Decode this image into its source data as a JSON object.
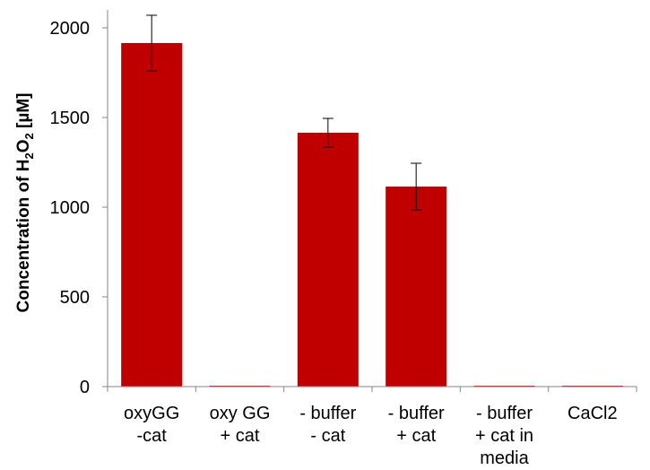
{
  "chart_data": {
    "type": "bar",
    "title": "",
    "xlabel": "",
    "ylabel": {
      "prefix": "Concentration of H",
      "sub1": "2",
      "mid": "O",
      "sub2": "2",
      "suffix": " [µM]"
    },
    "ylim": [
      0,
      2000
    ],
    "yticks": [
      0,
      500,
      1000,
      1500,
      2000
    ],
    "ytick_labels": [
      "0",
      "500",
      "1000",
      "1500",
      "2000"
    ],
    "grid": false,
    "legend": "none",
    "categories": [
      [
        "oxyGG",
        "-cat"
      ],
      [
        "oxy GG",
        "+ cat"
      ],
      [
        "- buffer",
        "- cat"
      ],
      [
        "- buffer",
        "+ cat"
      ],
      [
        "- buffer",
        "+ cat in",
        "media"
      ],
      [
        "CaCl2"
      ]
    ],
    "values": [
      1915,
      5,
      1415,
      1115,
      5,
      5
    ],
    "errors": [
      155,
      0,
      80,
      130,
      0,
      0
    ],
    "bar_color": "#c00000",
    "error_color": "#000000"
  }
}
